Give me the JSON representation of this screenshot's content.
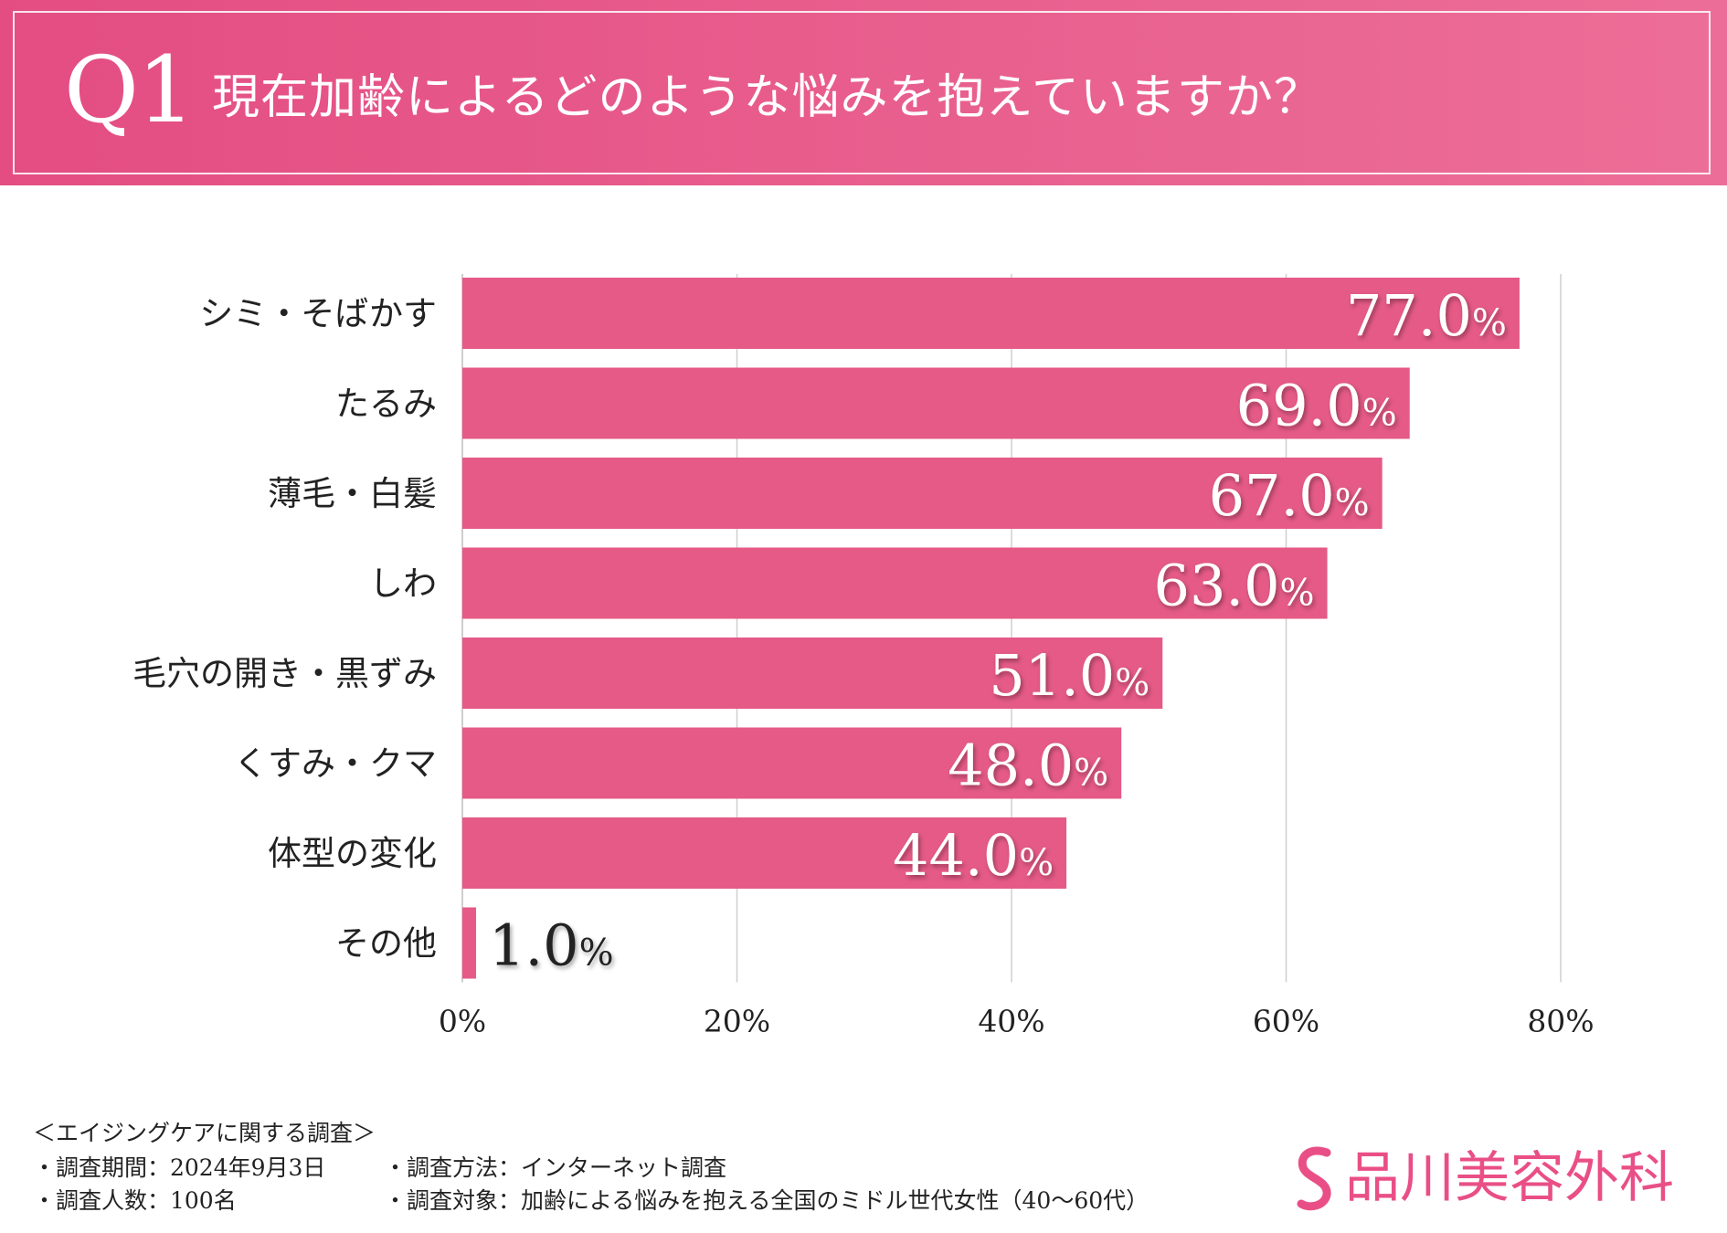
{
  "header": {
    "q_number": "Q1",
    "question": "現在加齢によるどのような悩みを抱えていますか？"
  },
  "chart_data": {
    "type": "bar",
    "orientation": "horizontal",
    "title": "現在加齢によるどのような悩みを抱えていますか？",
    "categories": [
      "シミ・そばかす",
      "たるみ",
      "薄毛・白髪",
      "しわ",
      "毛穴の開き・黒ずみ",
      "くすみ・クマ",
      "体型の変化",
      "その他"
    ],
    "values": [
      77.0,
      69.0,
      67.0,
      63.0,
      51.0,
      48.0,
      44.0,
      1.0
    ],
    "value_labels": [
      "77.0",
      "69.0",
      "67.0",
      "63.0",
      "51.0",
      "48.0",
      "44.0",
      "1.0"
    ],
    "value_suffix": "%",
    "xlim": [
      0,
      80
    ],
    "xticks": [
      "0%",
      "20%",
      "40%",
      "60%",
      "80%"
    ],
    "xtick_values": [
      0,
      20,
      40,
      60,
      80
    ],
    "grid": true,
    "bar_color": "#e55a87"
  },
  "footer": {
    "survey_title": "＜エイジングケアに関する調査＞",
    "period": "・調査期間：2024年9月3日",
    "count": "・調査人数：100名",
    "method": "・調査方法：インターネット調査",
    "target": "・調査対象：加齢による悩みを抱える全国のミドル世代女性（40〜60代）"
  },
  "logo": {
    "text": "品川美容外科",
    "color": "#e94f86"
  }
}
